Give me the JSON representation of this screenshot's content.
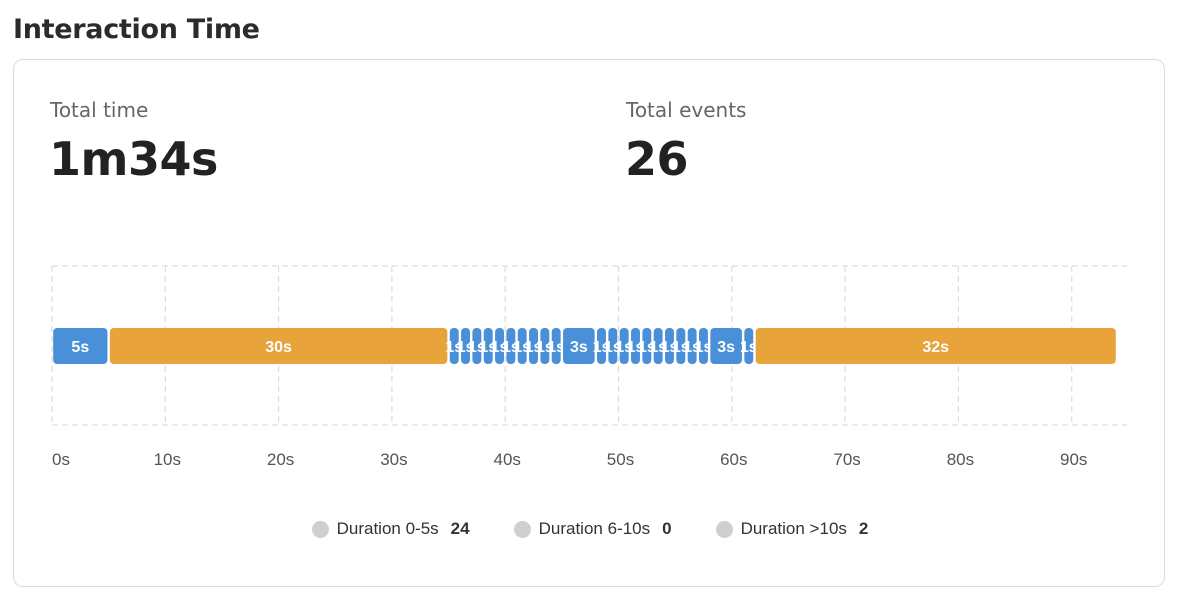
{
  "page": {
    "title": "Interaction Time"
  },
  "stats": {
    "total_time_label": "Total time",
    "total_time_value": "1m34s",
    "total_events_label": "Total events",
    "total_events_value": "26"
  },
  "chart_data": {
    "type": "bar",
    "orientation": "horizontal-timeline",
    "x_ticks": [
      0,
      10,
      20,
      30,
      40,
      50,
      60,
      70,
      80,
      90
    ],
    "x_tick_labels": [
      "0s",
      "10s",
      "20s",
      "30s",
      "40s",
      "50s",
      "60s",
      "70s",
      "80s",
      "90s"
    ],
    "xlim": [
      0,
      94
    ],
    "grid": true,
    "segments": [
      {
        "start": 0,
        "duration": 5,
        "label": "5s"
      },
      {
        "start": 5,
        "duration": 30,
        "label": "30s"
      },
      {
        "start": 35,
        "duration": 1,
        "label": "1s"
      },
      {
        "start": 36,
        "duration": 1,
        "label": "1s"
      },
      {
        "start": 37,
        "duration": 1,
        "label": "1s"
      },
      {
        "start": 38,
        "duration": 1,
        "label": "1s"
      },
      {
        "start": 39,
        "duration": 1,
        "label": "1s"
      },
      {
        "start": 40,
        "duration": 1,
        "label": "1s"
      },
      {
        "start": 41,
        "duration": 1,
        "label": "1s"
      },
      {
        "start": 42,
        "duration": 1,
        "label": "1s"
      },
      {
        "start": 43,
        "duration": 1,
        "label": "1s"
      },
      {
        "start": 44,
        "duration": 1,
        "label": "1s"
      },
      {
        "start": 45,
        "duration": 3,
        "label": "3s"
      },
      {
        "start": 48,
        "duration": 1,
        "label": "1s"
      },
      {
        "start": 49,
        "duration": 1,
        "label": "1s"
      },
      {
        "start": 50,
        "duration": 1,
        "label": "1s"
      },
      {
        "start": 51,
        "duration": 1,
        "label": "1s"
      },
      {
        "start": 52,
        "duration": 1,
        "label": "1s"
      },
      {
        "start": 53,
        "duration": 1,
        "label": "1s"
      },
      {
        "start": 54,
        "duration": 1,
        "label": "1s"
      },
      {
        "start": 55,
        "duration": 1,
        "label": "1s"
      },
      {
        "start": 56,
        "duration": 1,
        "label": "1s"
      },
      {
        "start": 57,
        "duration": 1,
        "label": "1s"
      },
      {
        "start": 58,
        "duration": 3,
        "label": "3s"
      },
      {
        "start": 61,
        "duration": 1,
        "label": "1s"
      },
      {
        "start": 62,
        "duration": 32,
        "label": "32s"
      }
    ],
    "colors": {
      "short": "#4a90d9",
      "long": "#e8a33a",
      "grid": "#dddddd"
    },
    "legend": [
      {
        "label": "Duration 0-5s",
        "count": "24"
      },
      {
        "label": "Duration 6-10s",
        "count": "0"
      },
      {
        "label": "Duration >10s",
        "count": "2"
      }
    ]
  }
}
